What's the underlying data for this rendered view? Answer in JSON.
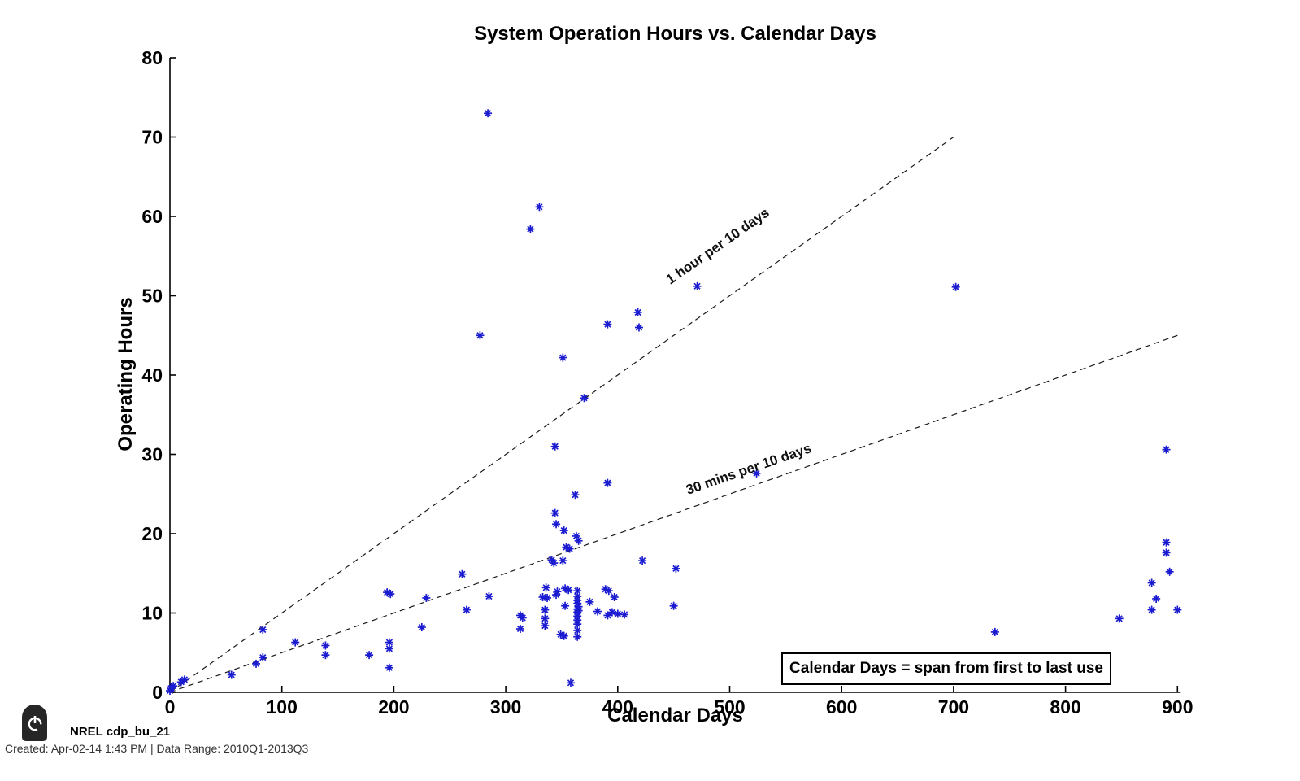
{
  "header": {
    "title": "System Operation Hours vs. Calendar Days"
  },
  "annotation_box": {
    "text": "Calendar Days = span from first to last use"
  },
  "footer": {
    "logo_icon": "power-icon",
    "logo_label": "NREL cdp_bu_21",
    "created_line": "Created: Apr-02-14  1:43 PM | Data Range: 2010Q1-2013Q3"
  },
  "chart_data": {
    "type": "scatter",
    "title": "System Operation Hours vs. Calendar Days",
    "xlabel": "Calendar Days",
    "ylabel": "Operating Hours",
    "xlim": [
      0,
      900
    ],
    "ylim": [
      0,
      80
    ],
    "xticks": [
      0,
      100,
      200,
      300,
      400,
      500,
      600,
      700,
      800,
      900
    ],
    "yticks": [
      0,
      10,
      20,
      30,
      40,
      50,
      60,
      70,
      80
    ],
    "grid": false,
    "legend": null,
    "marker": "asterisk",
    "marker_color": "#1b1bd0",
    "axis_color": "#000000",
    "reference_lines": [
      {
        "label": "1 hour per 10 days",
        "from": [
          0,
          0
        ],
        "to": [
          700,
          70
        ],
        "style": "dashed",
        "color": "#1a1a1a"
      },
      {
        "label": "30 mins per 10 days",
        "from": [
          0,
          0
        ],
        "to": [
          900,
          45
        ],
        "style": "dashed",
        "color": "#1a1a1a"
      }
    ],
    "points": [
      [
        0,
        0.2
      ],
      [
        1,
        0.5
      ],
      [
        3,
        0.8
      ],
      [
        10,
        1.3
      ],
      [
        13,
        1.6
      ],
      [
        55,
        2.2
      ],
      [
        77,
        3.6
      ],
      [
        83,
        4.4
      ],
      [
        83,
        7.9
      ],
      [
        112,
        6.3
      ],
      [
        139,
        5.9
      ],
      [
        139,
        4.7
      ],
      [
        178,
        4.7
      ],
      [
        194,
        12.6
      ],
      [
        197,
        12.4
      ],
      [
        196,
        6.3
      ],
      [
        196,
        5.5
      ],
      [
        196,
        3.1
      ],
      [
        225,
        8.2
      ],
      [
        229,
        11.9
      ],
      [
        261,
        14.9
      ],
      [
        265,
        10.4
      ],
      [
        285,
        12.1
      ],
      [
        284,
        73
      ],
      [
        330,
        61.2
      ],
      [
        322,
        58.4
      ],
      [
        277,
        45
      ],
      [
        351,
        42.2
      ],
      [
        370,
        37.1
      ],
      [
        344,
        31
      ],
      [
        391,
        46.4
      ],
      [
        418,
        47.9
      ],
      [
        419,
        46
      ],
      [
        391,
        26.4
      ],
      [
        362,
        24.9
      ],
      [
        471,
        51.2
      ],
      [
        524,
        27.6
      ],
      [
        702,
        51.1
      ],
      [
        344,
        22.6
      ],
      [
        345,
        21.2
      ],
      [
        352,
        20.4
      ],
      [
        363,
        19.7
      ],
      [
        365,
        19.1
      ],
      [
        354,
        18.3
      ],
      [
        357,
        18.1
      ],
      [
        341,
        16.7
      ],
      [
        343,
        16.3
      ],
      [
        351,
        16.6
      ],
      [
        422,
        16.6
      ],
      [
        452,
        15.6
      ],
      [
        336,
        13.2
      ],
      [
        346,
        12.7
      ],
      [
        353,
        13.1
      ],
      [
        356,
        12.9
      ],
      [
        333,
        12
      ],
      [
        337,
        11.9
      ],
      [
        345,
        12.3
      ],
      [
        389,
        13
      ],
      [
        392,
        12.8
      ],
      [
        397,
        12
      ],
      [
        364,
        12.8
      ],
      [
        364,
        12.1
      ],
      [
        364,
        11.6
      ],
      [
        364,
        11.2
      ],
      [
        365,
        10.8
      ],
      [
        364,
        10.5
      ],
      [
        365,
        10.3
      ],
      [
        364,
        10.1
      ],
      [
        364,
        9.6
      ],
      [
        364,
        9.1
      ],
      [
        364,
        8.6
      ],
      [
        364,
        7.8
      ],
      [
        364,
        7
      ],
      [
        375,
        11.4
      ],
      [
        382,
        10.2
      ],
      [
        353,
        10.9
      ],
      [
        335,
        10.4
      ],
      [
        335,
        9.3
      ],
      [
        335,
        8.4
      ],
      [
        313,
        9.7
      ],
      [
        315,
        9.4
      ],
      [
        313,
        8
      ],
      [
        391,
        9.7
      ],
      [
        395,
        10.1
      ],
      [
        400,
        9.9
      ],
      [
        406,
        9.8
      ],
      [
        450,
        10.9
      ],
      [
        349,
        7.3
      ],
      [
        352,
        7.1
      ],
      [
        358,
        1.2
      ],
      [
        737,
        7.6
      ],
      [
        848,
        9.3
      ],
      [
        877,
        13.8
      ],
      [
        877,
        10.4
      ],
      [
        881,
        11.8
      ],
      [
        890,
        30.6
      ],
      [
        890,
        18.9
      ],
      [
        890,
        17.6
      ],
      [
        893,
        15.2
      ],
      [
        900,
        10.4
      ]
    ]
  }
}
